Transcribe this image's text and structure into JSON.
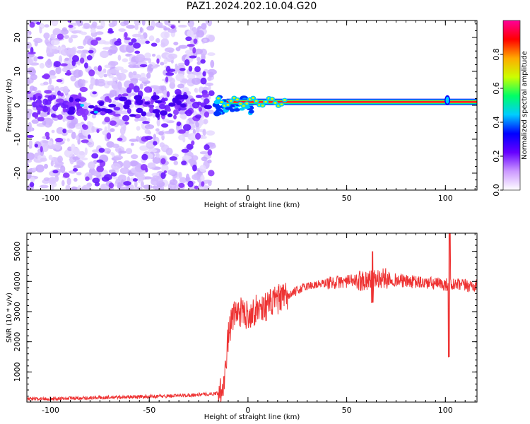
{
  "title": "PAZ1.2024.202.10.04.G20",
  "chart_data": [
    {
      "type": "heatmap",
      "xlabel": "Height of straight line (km)",
      "ylabel": "Frequency (Hz)",
      "xlim": [
        -112,
        116
      ],
      "ylim": [
        -25,
        25
      ],
      "xticks": [
        -100,
        -50,
        0,
        50,
        100
      ],
      "yticks": [
        -20,
        -10,
        0,
        10,
        20
      ],
      "colorbar": {
        "label": "Normalized spectral amplitude",
        "range": [
          0,
          1
        ],
        "ticks": [
          "0.0",
          "0.2",
          "0.4",
          "0.6",
          "0.8"
        ],
        "colors": [
          "#ffffff",
          "#cc99ff",
          "#6600ff",
          "#0000ff",
          "#00ccff",
          "#00ff66",
          "#ccff00",
          "#ffaa00",
          "#ff0000",
          "#ff0099"
        ]
      },
      "regions": [
        {
          "name": "noise scatter",
          "x_range": [
            -112,
            -18
          ],
          "freq_range": [
            -25,
            25
          ],
          "amplitude": "low"
        },
        {
          "name": "signal trace",
          "x_range": [
            -18,
            116
          ],
          "frequency": 1,
          "amplitude": "high"
        }
      ]
    },
    {
      "type": "line",
      "xlabel": "Height of straight line (km)",
      "ylabel": "SNR (10 * v/v)",
      "xlim": [
        -112,
        116
      ],
      "ylim": [
        0,
        5600
      ],
      "xticks": [
        -100,
        -50,
        0,
        50,
        100
      ],
      "yticks": [
        1000,
        2000,
        3000,
        4000,
        5000
      ],
      "color": "#ee3333",
      "profile": [
        [
          -112,
          100
        ],
        [
          -80,
          140
        ],
        [
          -60,
          170
        ],
        [
          -40,
          200
        ],
        [
          -30,
          230
        ],
        [
          -25,
          250
        ],
        [
          -20,
          260
        ],
        [
          -15,
          300
        ],
        [
          -12,
          700
        ],
        [
          -10,
          2200
        ],
        [
          -8,
          2800
        ],
        [
          -5,
          3000
        ],
        [
          0,
          2900
        ],
        [
          5,
          3100
        ],
        [
          10,
          3200
        ],
        [
          15,
          3400
        ],
        [
          20,
          3500
        ],
        [
          25,
          3700
        ],
        [
          30,
          3850
        ],
        [
          40,
          3950
        ],
        [
          50,
          4000
        ],
        [
          60,
          4050
        ],
        [
          70,
          4100
        ],
        [
          80,
          4000
        ],
        [
          90,
          3950
        ],
        [
          100,
          3900
        ],
        [
          116,
          3850
        ]
      ],
      "features": [
        {
          "x": 102,
          "min": 1500,
          "max": 5600
        },
        {
          "x": 63,
          "min": 3300,
          "max": 5000
        }
      ]
    }
  ]
}
